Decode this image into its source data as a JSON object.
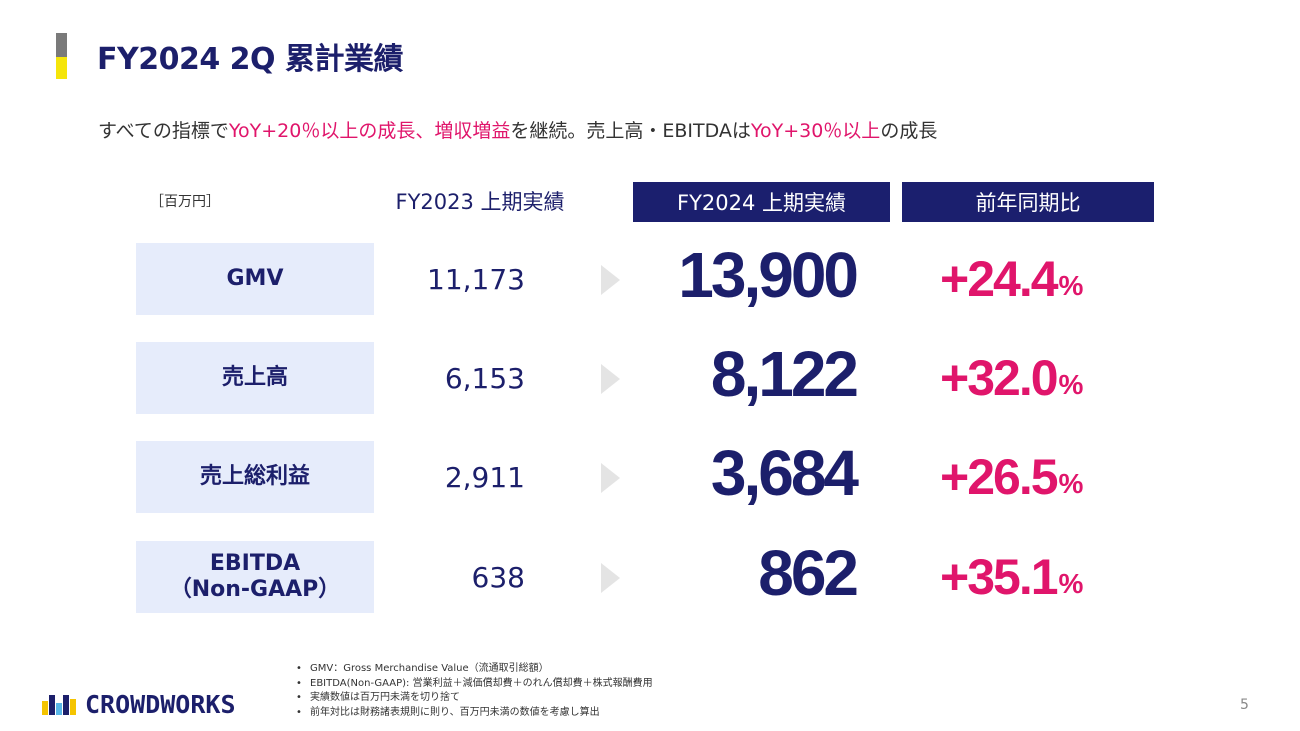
{
  "title": "FY2024 2Q 累計業績",
  "subtitle": {
    "parts": [
      {
        "text": "すべての指標で",
        "highlight": false
      },
      {
        "text": "YoY+20％以上の成長、増収増益",
        "highlight": true
      },
      {
        "text": "を継続。売上高・EBITDAは",
        "highlight": false
      },
      {
        "text": "YoY+30％以上",
        "highlight": true
      },
      {
        "text": "の成長",
        "highlight": false
      }
    ]
  },
  "table": {
    "unit": "［百万円］",
    "col_prev": "FY2023 上期実績",
    "col_curr": "FY2024 上期実績",
    "col_yoy": "前年同期比",
    "rows": [
      {
        "label": "GMV",
        "prev": "11,173",
        "curr": "13,900",
        "yoy": "+24.4",
        "pct": "%"
      },
      {
        "label": "売上高",
        "prev": "6,153",
        "curr": "8,122",
        "yoy": "+32.0",
        "pct": "%"
      },
      {
        "label": "売上総利益",
        "prev": "2,911",
        "curr": "3,684",
        "yoy": "+26.5",
        "pct": "%"
      },
      {
        "label": "EBITDA\n（Non-GAAP）",
        "prev": "638",
        "curr": "862",
        "yoy": "+35.1",
        "pct": "%"
      }
    ]
  },
  "notes": [
    "GMV：Gross Merchandise Value（流通取引総額）",
    "EBITDA(Non-GAAP): 営業利益＋減価償却費＋のれん償却費＋株式報酬費用",
    "実績数値は百万円未満を切り捨て",
    "前年対比は財務諸表規則に則り、百万円未満の数値を考慮し算出"
  ],
  "logo_text": "CROWDWORKS",
  "page_number": "5",
  "colors": {
    "navy": "#1c1f6b",
    "header_navy": "#1b1f6e",
    "accent_pink": "#e0156b",
    "label_bg": "#e6ecfb",
    "title_bar_gray": "#7a7a7a",
    "title_bar_yellow": "#f5e50a"
  }
}
